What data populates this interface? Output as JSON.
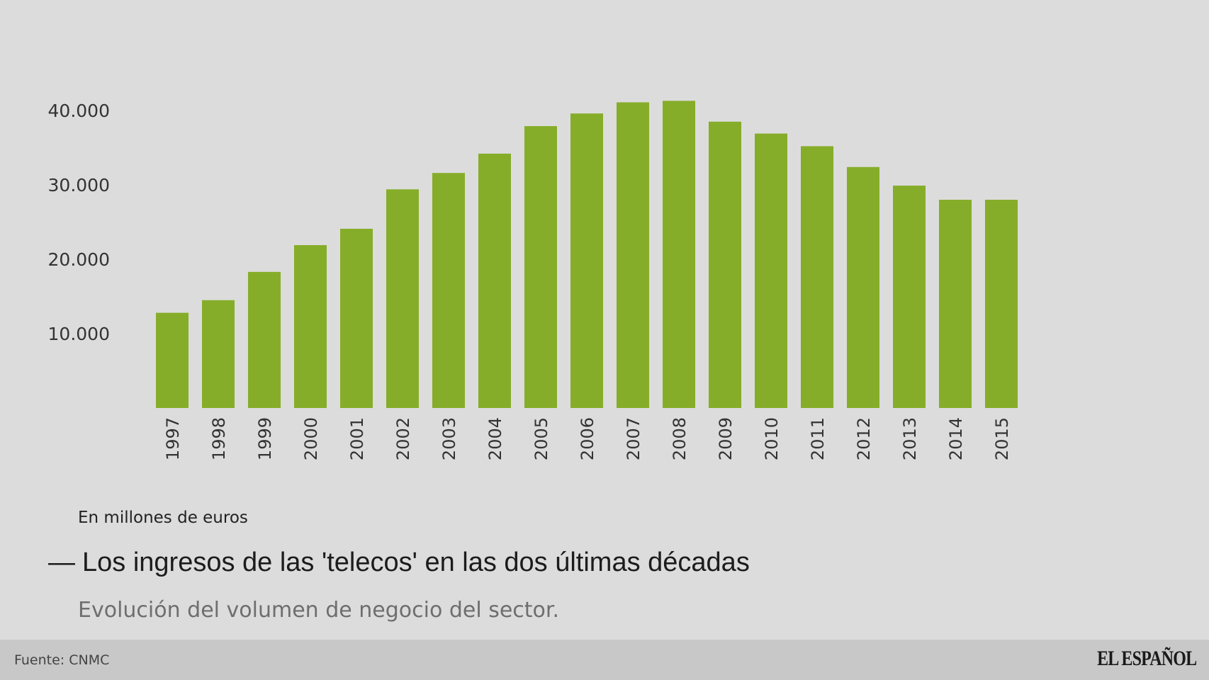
{
  "chart_data": {
    "type": "bar",
    "title": "Los ingresos de las 'telecos' en las dos últimas décadas",
    "subtitle": "Evolución del volumen de negocio del sector.",
    "unit_note": "En millones de euros",
    "source": "Fuente: CNMC",
    "categories": [
      "1997",
      "1998",
      "1999",
      "2000",
      "2001",
      "2002",
      "2003",
      "2004",
      "2005",
      "2006",
      "2007",
      "2008",
      "2009",
      "2010",
      "2011",
      "2012",
      "2013",
      "2014",
      "2015"
    ],
    "values": [
      12800,
      14500,
      18300,
      21900,
      24100,
      29400,
      31600,
      34200,
      37900,
      39600,
      41100,
      41300,
      38500,
      36900,
      35200,
      32400,
      29900,
      28000,
      28000
    ],
    "ylim": [
      0,
      43000
    ],
    "yticks": [
      10000,
      20000,
      30000,
      40000
    ],
    "ytick_labels": [
      "10.000",
      "20.000",
      "30.000",
      "40.000"
    ],
    "grid": false,
    "legend": "none",
    "colors": {
      "bar": "#86ad29",
      "background": "#dcdcdc",
      "footer": "#c8c8c8"
    }
  },
  "title_dash": "—",
  "brand": "EL ESPAÑOL"
}
